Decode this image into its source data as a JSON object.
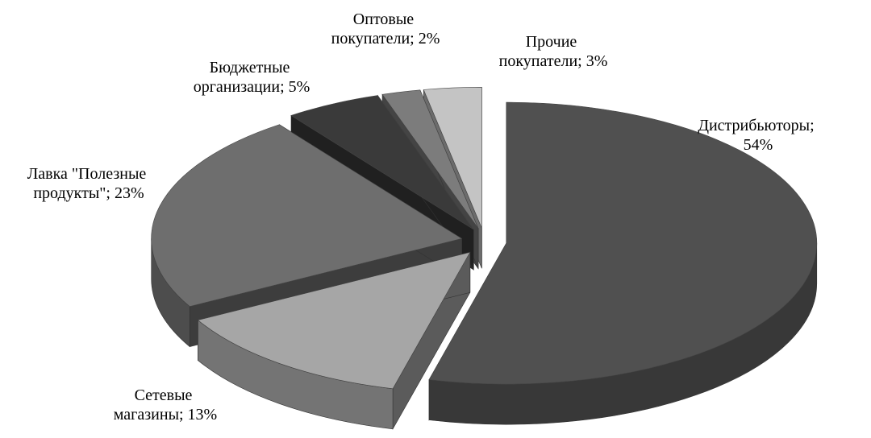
{
  "chart_data": {
    "type": "pie",
    "values": [
      54,
      13,
      23,
      5,
      2,
      3
    ],
    "value_labels": [
      "Дистрибьюторы; 54%",
      "Сетевые магазины; 13%",
      "Лавка \"Полезные продукты\"; 23%",
      "Бюджетные организации; 5%",
      "Оптовые покупатели; 2%",
      "Прочие покупатели; 3%"
    ],
    "colors": [
      "#505050",
      "#a6a6a6",
      "#6e6e6e",
      "#3a3a3a",
      "#7c7c7c",
      "#c4c4c4"
    ]
  }
}
